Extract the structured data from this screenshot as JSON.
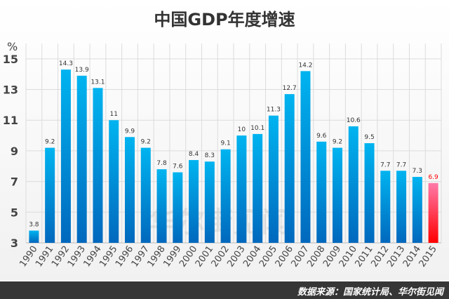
{
  "chart_data": {
    "type": "bar",
    "title": "中国GDP年度增速",
    "ylabel": "%",
    "xlabel": "",
    "ylim": [
      3,
      16
    ],
    "yticks": [
      3,
      5,
      7,
      9,
      11,
      13,
      15
    ],
    "grid": true,
    "categories": [
      "1990",
      "1991",
      "1992",
      "1993",
      "1994",
      "1995",
      "1996",
      "1997",
      "1998",
      "1999",
      "2000",
      "2001",
      "2002",
      "2003",
      "2004",
      "2005",
      "2006",
      "2007",
      "2008",
      "2009",
      "2010",
      "2011",
      "2012",
      "2013",
      "2014",
      "2015"
    ],
    "values": [
      3.8,
      9.2,
      14.3,
      13.9,
      13.1,
      11,
      9.9,
      9.2,
      7.8,
      7.6,
      8.4,
      8.3,
      9.1,
      10,
      10.1,
      11.3,
      12.7,
      14.2,
      9.6,
      9.2,
      10.6,
      9.5,
      7.7,
      7.7,
      7.3,
      6.9
    ],
    "colors": {
      "bar": "#00aeef",
      "bar_bottom": "#0070c0",
      "highlight": "#ff0000",
      "highlight_top": "#ff6699",
      "highlight_label": "#ff0000"
    }
  },
  "watermark": "华尔街见闻",
  "footer": {
    "source": "数据来源：国家统计局、华尔街见闻"
  }
}
